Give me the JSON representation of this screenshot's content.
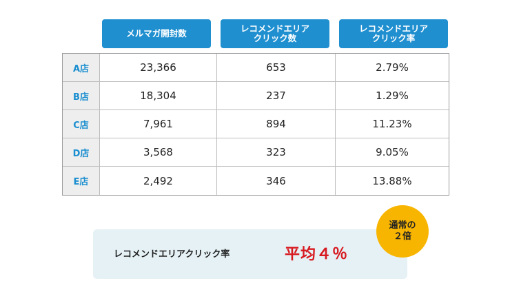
{
  "headers": [
    "メルマガ開封数",
    "レコメンドエリア\nクリック数",
    "レコメンドエリア\nクリック率"
  ],
  "rows": [
    {
      "store": "A店",
      "opens": "23,366",
      "clicks": "653",
      "rate": "2.79%"
    },
    {
      "store": "B店",
      "opens": "18,304",
      "clicks": "237",
      "rate": "1.29%"
    },
    {
      "store": "C店",
      "opens": "7,961",
      "clicks": "894",
      "rate": "11.23%"
    },
    {
      "store": "D店",
      "opens": "3,568",
      "clicks": "323",
      "rate": "9.05%"
    },
    {
      "store": "E店",
      "opens": "2,492",
      "clicks": "346",
      "rate": "13.88%"
    }
  ],
  "summary": {
    "label": "レコメンドエリアクリック率",
    "value": "平均４％"
  },
  "badge": {
    "text": "通常の\n２倍"
  },
  "colors": {
    "header_bg": "#1f8fd0",
    "store_label": "#1a8ed0",
    "summary_bg": "#e5f1f5",
    "summary_value": "#d71920",
    "badge_bg": "#f8b500"
  }
}
